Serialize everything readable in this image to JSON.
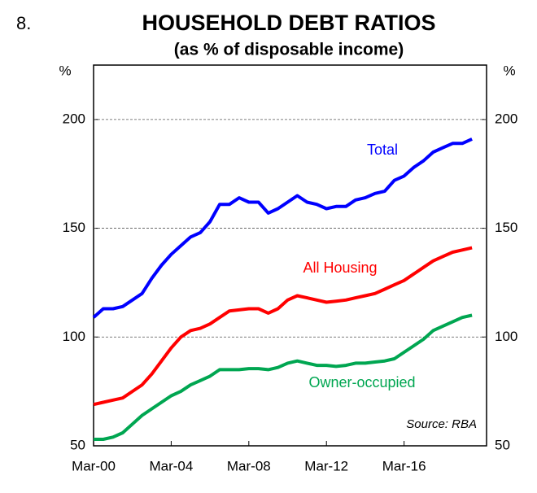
{
  "figure_number": "8.",
  "chart_data": {
    "type": "line",
    "title": "HOUSEHOLD DEBT RATIOS",
    "subtitle": "(as % of disposable income)",
    "y_unit": "%",
    "source": "Source: RBA",
    "xlim": [
      2000,
      2020.25
    ],
    "xticks": [
      {
        "value": 2000,
        "label": "Mar-00"
      },
      {
        "value": 2004,
        "label": "Mar-04"
      },
      {
        "value": 2008,
        "label": "Mar-08"
      },
      {
        "value": 2012,
        "label": "Mar-12"
      },
      {
        "value": 2016,
        "label": "Mar-16"
      }
    ],
    "ylim": [
      50,
      225
    ],
    "yticks": [
      50,
      100,
      150,
      200
    ],
    "grid": true,
    "x": [
      2000,
      2000.5,
      2001,
      2001.5,
      2002,
      2002.5,
      2003,
      2003.5,
      2004,
      2004.5,
      2005,
      2005.5,
      2006,
      2006.5,
      2007,
      2007.5,
      2008,
      2008.5,
      2009,
      2009.5,
      2010,
      2010.5,
      2011,
      2011.5,
      2012,
      2012.5,
      2013,
      2013.5,
      2014,
      2014.5,
      2015,
      2015.5,
      2016,
      2016.5,
      2017,
      2017.5,
      2018,
      2018.5,
      2019,
      2019.5
    ],
    "series": [
      {
        "name": "Total",
        "color": "#0000ff",
        "values": [
          109,
          113,
          113,
          114,
          117,
          120,
          127,
          133,
          138,
          142,
          146,
          148,
          153,
          161,
          161,
          164,
          162,
          162,
          157,
          159,
          162,
          165,
          162,
          161,
          159,
          160,
          160,
          163,
          164,
          166,
          167,
          172,
          174,
          178,
          181,
          185,
          187,
          189,
          189,
          191
        ]
      },
      {
        "name": "All Housing",
        "color": "#ff0000",
        "values": [
          69,
          70,
          71,
          72,
          75,
          78,
          83,
          89,
          95,
          100,
          103,
          104,
          106,
          109,
          112,
          112.5,
          113,
          113,
          111,
          113,
          117,
          119,
          118,
          117,
          116,
          116.5,
          117,
          118,
          119,
          120,
          122,
          124,
          126,
          129,
          132,
          135,
          137,
          139,
          140,
          141
        ]
      },
      {
        "name": "Owner-occupied",
        "color": "#00a651",
        "values": [
          53,
          53,
          54,
          56,
          60,
          64,
          67,
          70,
          73,
          75,
          78,
          80,
          82,
          85,
          85,
          85,
          85.5,
          85.5,
          85,
          86,
          88,
          89,
          88,
          87,
          87,
          86.5,
          87,
          88,
          88,
          88.5,
          89,
          90,
          93,
          96,
          99,
          103,
          105,
          107,
          109,
          110
        ]
      }
    ]
  }
}
